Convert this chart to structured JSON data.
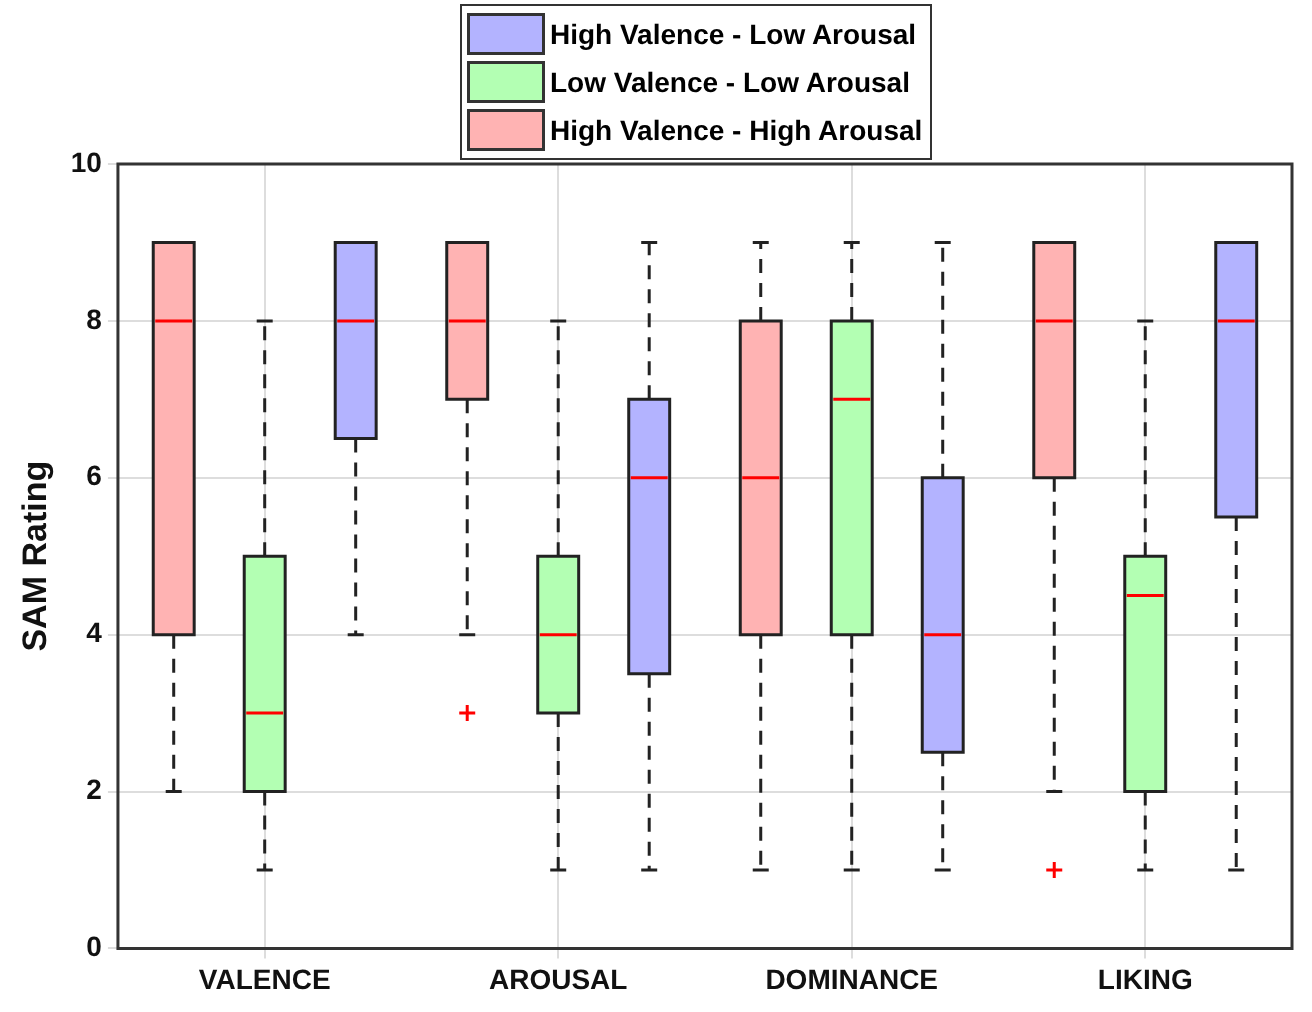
{
  "chart_data": {
    "type": "box",
    "ylabel": "SAM Rating",
    "categories": [
      "VALENCE",
      "AROUSAL",
      "DOMINANCE",
      "LIKING"
    ],
    "ylim": [
      0,
      10
    ],
    "yticks": [
      0,
      2,
      4,
      6,
      8,
      10
    ],
    "grid": true,
    "legend": "top",
    "series": [
      {
        "name": "High Valence - Low Arousal",
        "color": "#b3b3ff",
        "boxes": [
          {
            "low": 4,
            "q1": 6.5,
            "median": 8,
            "q3": 9,
            "high": 9
          },
          {
            "low": 1,
            "q1": 3.5,
            "median": 6,
            "q3": 7,
            "high": 9
          },
          {
            "low": 1,
            "q1": 2.5,
            "median": 4,
            "q3": 6,
            "high": 9
          },
          {
            "low": 1,
            "q1": 5.5,
            "median": 8,
            "q3": 9,
            "high": 9
          }
        ]
      },
      {
        "name": "Low Valence - Low Arousal",
        "color": "#b3ffb3",
        "boxes": [
          {
            "low": 1,
            "q1": 2,
            "median": 3,
            "q3": 5,
            "high": 8
          },
          {
            "low": 1,
            "q1": 3,
            "median": 4,
            "q3": 5,
            "high": 8
          },
          {
            "low": 1,
            "q1": 4,
            "median": 7,
            "q3": 8,
            "high": 9
          },
          {
            "low": 1,
            "q1": 2,
            "median": 4.5,
            "q3": 5,
            "high": 8
          }
        ]
      },
      {
        "name": "High Valence - High Arousal",
        "color": "#ffb3b3",
        "boxes": [
          {
            "low": 2,
            "q1": 4,
            "median": 8,
            "q3": 9,
            "high": 9
          },
          {
            "low": 4,
            "q1": 7,
            "median": 8,
            "q3": 9,
            "high": 9,
            "outliers": [
              3
            ]
          },
          {
            "low": 1,
            "q1": 4,
            "median": 6,
            "q3": 8,
            "high": 9
          },
          {
            "low": 2,
            "q1": 6,
            "median": 8,
            "q3": 9,
            "high": 9,
            "outliers": [
              1
            ]
          }
        ]
      }
    ]
  }
}
